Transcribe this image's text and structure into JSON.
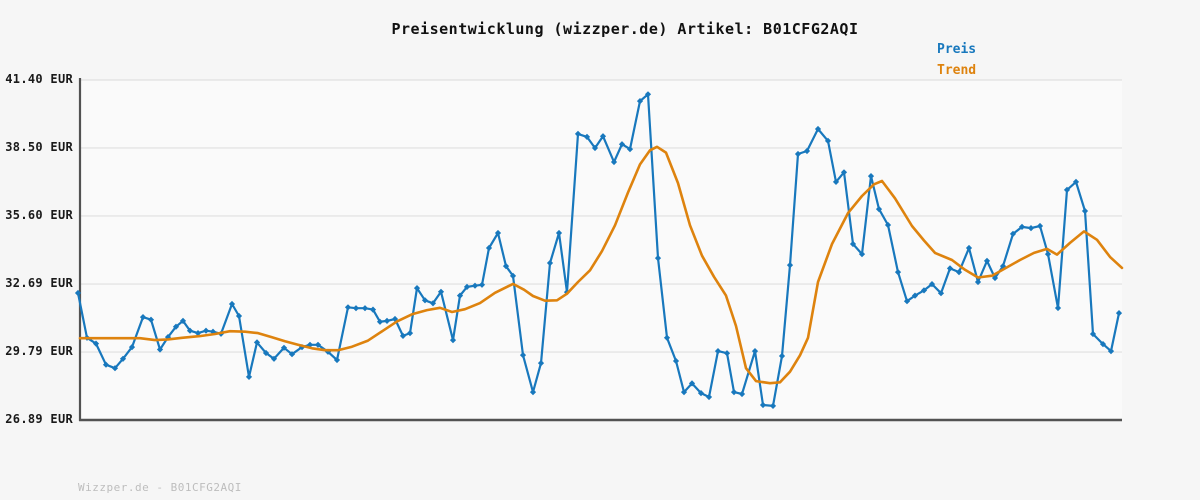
{
  "header": {
    "title": "Preisentwicklung (wizzper.de) Artikel: B01CFG2AQI"
  },
  "legend": [
    {
      "label": "Preis",
      "color": "#1878bd"
    },
    {
      "label": "Trend",
      "color": "#de830e"
    }
  ],
  "footer": {
    "text": "Wizzper.de - B01CFG2AQI"
  },
  "colors": {
    "price_line": "#1878bd",
    "trend_line": "#de830e",
    "gridline": "#e4e4e4",
    "axis": "#525252",
    "plot_background": "#fafafa",
    "page_background": "#f6f6f6"
  },
  "chart_data": {
    "type": "line",
    "title": "Preisentwicklung (wizzper.de) Artikel: B01CFG2AQI",
    "xlabel": "",
    "ylabel": "EUR",
    "ylim": [
      26.89,
      41.4
    ],
    "grid": true,
    "legend_position": "top-right",
    "x_unit": "px",
    "yticks": [
      {
        "label": "41.40 EUR",
        "value": 41.4
      },
      {
        "label": "38.50 EUR",
        "value": 38.5
      },
      {
        "label": "35.60 EUR",
        "value": 35.6
      },
      {
        "label": "32.69 EUR",
        "value": 32.69
      },
      {
        "label": "29.79 EUR",
        "value": 29.79
      },
      {
        "label": "26.89 EUR",
        "value": 26.89
      }
    ],
    "series": [
      {
        "name": "Preis",
        "color": "#1878bd",
        "marker": "diamond",
        "points": [
          [
            78,
            32.31
          ],
          [
            87,
            30.4
          ],
          [
            96,
            30.15
          ],
          [
            106,
            29.25
          ],
          [
            115,
            29.1
          ],
          [
            123,
            29.5
          ],
          [
            132,
            30.0
          ],
          [
            143,
            31.28
          ],
          [
            151,
            31.17
          ],
          [
            160,
            29.9
          ],
          [
            168,
            30.43
          ],
          [
            176,
            30.87
          ],
          [
            183,
            31.12
          ],
          [
            190,
            30.7
          ],
          [
            198,
            30.6
          ],
          [
            206,
            30.7
          ],
          [
            213,
            30.66
          ],
          [
            221,
            30.57
          ],
          [
            232,
            31.84
          ],
          [
            239,
            31.33
          ],
          [
            249,
            28.73
          ],
          [
            257,
            30.2
          ],
          [
            266,
            29.75
          ],
          [
            274,
            29.5
          ],
          [
            284,
            29.97
          ],
          [
            292,
            29.7
          ],
          [
            302,
            30.0
          ],
          [
            310,
            30.1
          ],
          [
            318,
            30.1
          ],
          [
            328,
            29.8
          ],
          [
            337,
            29.45
          ],
          [
            348,
            31.7
          ],
          [
            356,
            31.66
          ],
          [
            365,
            31.66
          ],
          [
            373,
            31.6
          ],
          [
            380,
            31.08
          ],
          [
            387,
            31.12
          ],
          [
            395,
            31.2
          ],
          [
            403,
            30.48
          ],
          [
            410,
            30.6
          ],
          [
            417,
            32.52
          ],
          [
            425,
            32.0
          ],
          [
            433,
            31.87
          ],
          [
            441,
            32.36
          ],
          [
            453,
            30.3
          ],
          [
            460,
            32.2
          ],
          [
            467,
            32.57
          ],
          [
            475,
            32.62
          ],
          [
            482,
            32.66
          ],
          [
            489,
            34.23
          ],
          [
            498,
            34.87
          ],
          [
            506,
            33.46
          ],
          [
            513,
            33.04
          ],
          [
            523,
            29.66
          ],
          [
            533,
            28.08
          ],
          [
            541,
            29.32
          ],
          [
            550,
            33.59
          ],
          [
            559,
            34.87
          ],
          [
            567,
            32.35
          ],
          [
            578,
            39.1
          ],
          [
            587,
            38.97
          ],
          [
            595,
            38.5
          ],
          [
            603,
            39.0
          ],
          [
            614,
            37.9
          ],
          [
            622,
            38.66
          ],
          [
            630,
            38.45
          ],
          [
            640,
            40.5
          ],
          [
            648,
            40.79
          ],
          [
            658,
            33.8
          ],
          [
            667,
            30.4
          ],
          [
            676,
            29.41
          ],
          [
            684,
            28.08
          ],
          [
            692,
            28.45
          ],
          [
            701,
            28.04
          ],
          [
            709,
            27.87
          ],
          [
            718,
            29.83
          ],
          [
            727,
            29.74
          ],
          [
            734,
            28.08
          ],
          [
            742,
            28.0
          ],
          [
            755,
            29.83
          ],
          [
            763,
            27.53
          ],
          [
            773,
            27.49
          ],
          [
            782,
            29.62
          ],
          [
            790,
            33.5
          ],
          [
            798,
            38.24
          ],
          [
            807,
            38.37
          ],
          [
            818,
            39.31
          ],
          [
            828,
            38.8
          ],
          [
            836,
            37.05
          ],
          [
            844,
            37.46
          ],
          [
            853,
            34.4
          ],
          [
            862,
            33.97
          ],
          [
            871,
            37.3
          ],
          [
            879,
            35.89
          ],
          [
            888,
            35.21
          ],
          [
            898,
            33.2
          ],
          [
            907,
            31.96
          ],
          [
            915,
            32.2
          ],
          [
            924,
            32.42
          ],
          [
            932,
            32.69
          ],
          [
            941,
            32.3
          ],
          [
            950,
            33.36
          ],
          [
            959,
            33.2
          ],
          [
            969,
            34.23
          ],
          [
            978,
            32.78
          ],
          [
            987,
            33.68
          ],
          [
            995,
            32.95
          ],
          [
            1003,
            33.46
          ],
          [
            1013,
            34.83
          ],
          [
            1022,
            35.13
          ],
          [
            1031,
            35.08
          ],
          [
            1040,
            35.17
          ],
          [
            1048,
            33.97
          ],
          [
            1058,
            31.67
          ],
          [
            1067,
            36.71
          ],
          [
            1076,
            37.05
          ],
          [
            1085,
            35.81
          ],
          [
            1093,
            30.56
          ],
          [
            1103,
            30.13
          ],
          [
            1111,
            29.83
          ],
          [
            1119,
            31.45
          ]
        ]
      },
      {
        "name": "Trend",
        "color": "#de830e",
        "marker": "none",
        "points": [
          [
            80,
            30.38
          ],
          [
            100,
            30.38
          ],
          [
            120,
            30.38
          ],
          [
            140,
            30.38
          ],
          [
            155,
            30.3
          ],
          [
            168,
            30.33
          ],
          [
            182,
            30.4
          ],
          [
            200,
            30.47
          ],
          [
            215,
            30.56
          ],
          [
            230,
            30.68
          ],
          [
            245,
            30.66
          ],
          [
            258,
            30.6
          ],
          [
            272,
            30.42
          ],
          [
            285,
            30.25
          ],
          [
            298,
            30.1
          ],
          [
            312,
            29.95
          ],
          [
            325,
            29.87
          ],
          [
            338,
            29.87
          ],
          [
            352,
            30.02
          ],
          [
            368,
            30.28
          ],
          [
            383,
            30.7
          ],
          [
            397,
            31.1
          ],
          [
            412,
            31.4
          ],
          [
            427,
            31.58
          ],
          [
            440,
            31.68
          ],
          [
            452,
            31.5
          ],
          [
            465,
            31.62
          ],
          [
            480,
            31.88
          ],
          [
            495,
            32.32
          ],
          [
            513,
            32.7
          ],
          [
            524,
            32.45
          ],
          [
            533,
            32.18
          ],
          [
            545,
            31.98
          ],
          [
            557,
            32.0
          ],
          [
            567,
            32.28
          ],
          [
            578,
            32.78
          ],
          [
            590,
            33.28
          ],
          [
            602,
            34.1
          ],
          [
            615,
            35.2
          ],
          [
            628,
            36.6
          ],
          [
            640,
            37.8
          ],
          [
            650,
            38.4
          ],
          [
            657,
            38.55
          ],
          [
            666,
            38.3
          ],
          [
            678,
            37.0
          ],
          [
            690,
            35.2
          ],
          [
            702,
            33.9
          ],
          [
            714,
            33.0
          ],
          [
            726,
            32.2
          ],
          [
            736,
            30.9
          ],
          [
            746,
            29.1
          ],
          [
            756,
            28.55
          ],
          [
            770,
            28.46
          ],
          [
            780,
            28.5
          ],
          [
            790,
            28.95
          ],
          [
            800,
            29.65
          ],
          [
            808,
            30.4
          ],
          [
            818,
            32.78
          ],
          [
            832,
            34.4
          ],
          [
            848,
            35.72
          ],
          [
            862,
            36.45
          ],
          [
            874,
            36.95
          ],
          [
            882,
            37.09
          ],
          [
            895,
            36.35
          ],
          [
            912,
            35.17
          ],
          [
            924,
            34.55
          ],
          [
            935,
            34.02
          ],
          [
            952,
            33.72
          ],
          [
            965,
            33.3
          ],
          [
            978,
            32.97
          ],
          [
            992,
            33.05
          ],
          [
            1006,
            33.38
          ],
          [
            1020,
            33.72
          ],
          [
            1034,
            34.02
          ],
          [
            1047,
            34.19
          ],
          [
            1057,
            33.95
          ],
          [
            1070,
            34.45
          ],
          [
            1084,
            34.94
          ],
          [
            1097,
            34.58
          ],
          [
            1110,
            33.85
          ],
          [
            1122,
            33.38
          ]
        ]
      }
    ]
  }
}
